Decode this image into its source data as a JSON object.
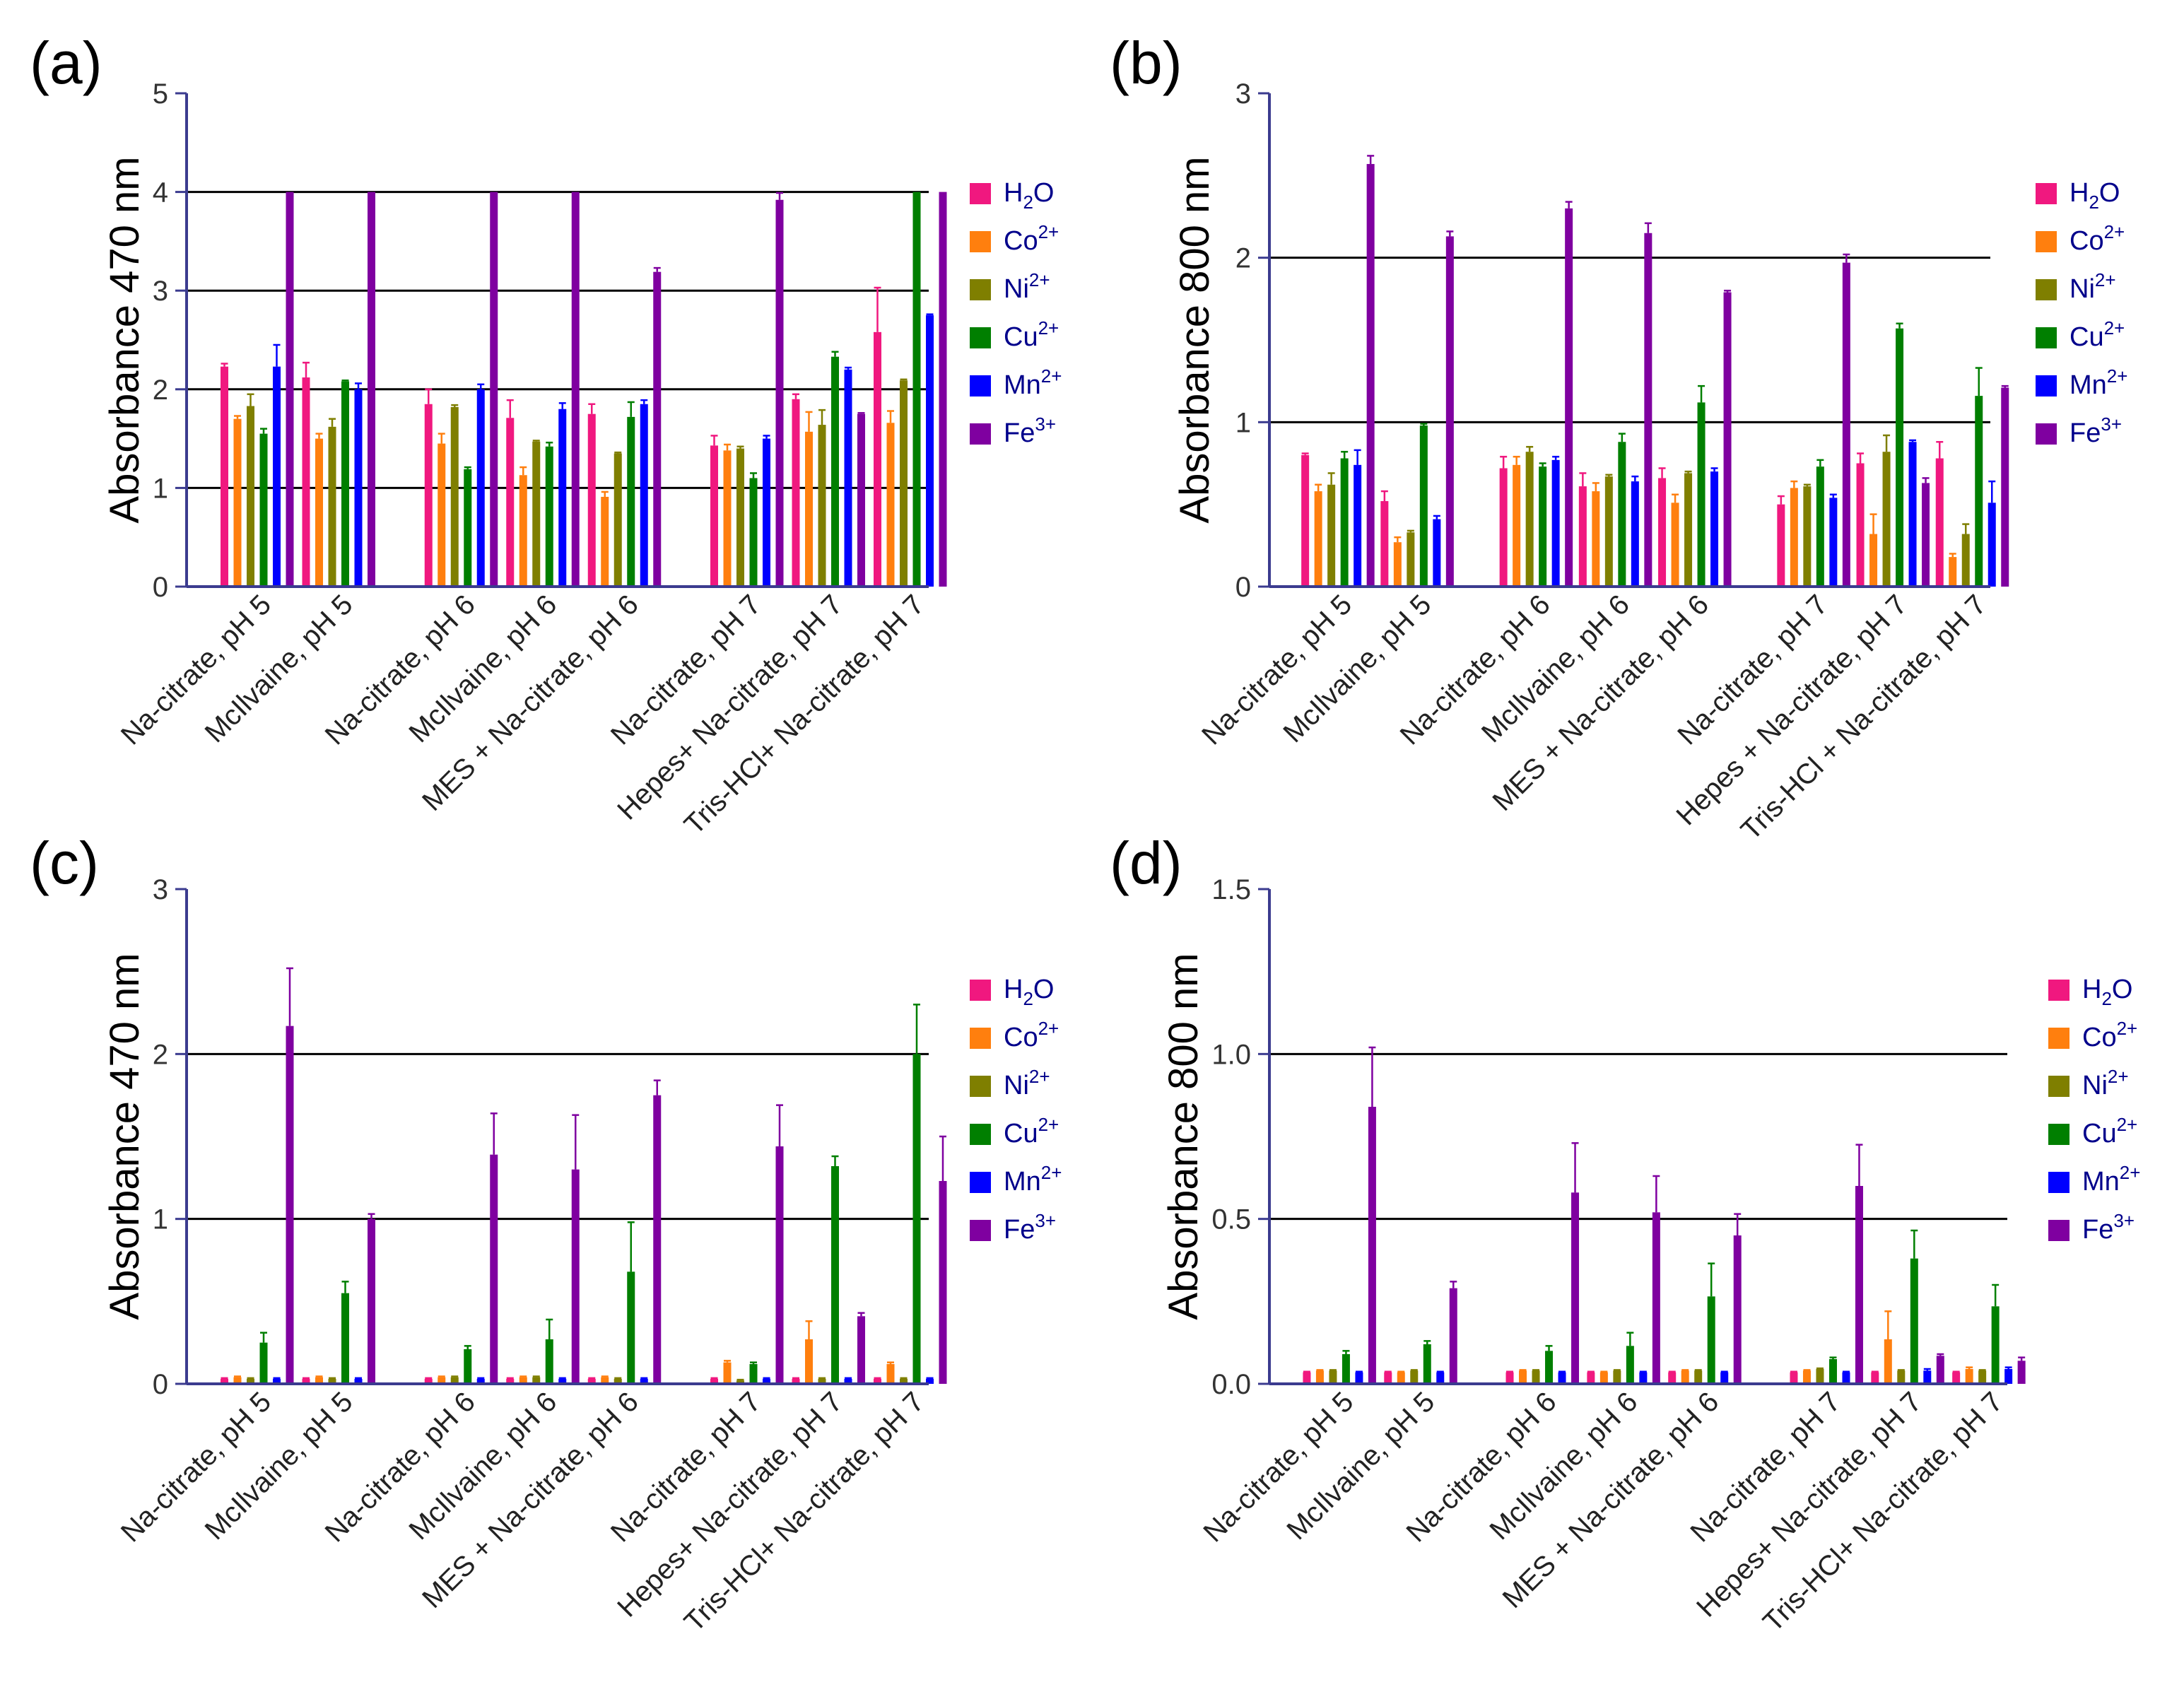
{
  "figure": {
    "series_colors": {
      "H2O": "#f0187f",
      "Co2+": "#ff7f0e",
      "Ni2+": "#7f7f00",
      "Cu2+": "#007f00",
      "Mn2+": "#0000ff",
      "Fe3+": "#7f00a0"
    },
    "axis_color": "#3b3b8f"
  },
  "chart_data": [
    {
      "panel": "(a)",
      "type": "bar",
      "ylabel": "Absorbance 470 nm",
      "ylim": [
        0,
        5
      ],
      "yticks": [
        "0",
        "1",
        "2",
        "3",
        "4",
        "5"
      ],
      "gridlines": [
        1,
        2,
        3,
        4
      ],
      "legend_position": "right",
      "legend": [
        {
          "base": "H",
          "sub": "2",
          "tail": "O",
          "sup": ""
        },
        {
          "base": "Co",
          "sub": "",
          "tail": "",
          "sup": "2+"
        },
        {
          "base": "Ni",
          "sub": "",
          "tail": "",
          "sup": "2+"
        },
        {
          "base": "Cu",
          "sub": "",
          "tail": "",
          "sup": "2+"
        },
        {
          "base": "Mn",
          "sub": "",
          "tail": "",
          "sup": "2+"
        },
        {
          "base": "Fe",
          "sub": "",
          "tail": "",
          "sup": "3+"
        }
      ],
      "categories": [
        "Na-citrate, pH 5",
        "McIlvaine, pH 5",
        "Na-citrate, pH 6",
        "McIlvaine, pH 6",
        "MES + Na-citrate, pH 6",
        "Na-citrate, pH 7",
        "Hepes+ Na-citrate, pH 7",
        "Tris-HCl+ Na-citrate, pH 7"
      ],
      "series": [
        {
          "name": "H2O",
          "values": [
            2.23,
            2.12,
            1.85,
            1.71,
            1.75,
            1.43,
            1.9,
            2.58
          ],
          "errors": [
            0.03,
            0.15,
            0.15,
            0.18,
            0.1,
            0.1,
            0.05,
            0.45
          ]
        },
        {
          "name": "Co2+",
          "values": [
            1.7,
            1.5,
            1.45,
            1.13,
            0.91,
            1.38,
            1.57,
            1.66
          ],
          "errors": [
            0.03,
            0.05,
            0.1,
            0.08,
            0.05,
            0.06,
            0.2,
            0.12
          ]
        },
        {
          "name": "Ni2+",
          "values": [
            1.83,
            1.62,
            1.82,
            1.47,
            1.35,
            1.4,
            1.64,
            2.09
          ],
          "errors": [
            0.12,
            0.08,
            0.02,
            0.01,
            0.01,
            0.02,
            0.15,
            0.01
          ]
        },
        {
          "name": "Cu2+",
          "values": [
            1.55,
            2.08,
            1.19,
            1.42,
            1.72,
            1.1,
            2.33,
            4.0
          ],
          "errors": [
            0.05,
            0.01,
            0.02,
            0.04,
            0.15,
            0.05,
            0.05,
            0.0
          ]
        },
        {
          "name": "Mn2+",
          "values": [
            2.23,
            2.0,
            2.0,
            1.8,
            1.85,
            1.5,
            2.2,
            2.75
          ],
          "errors": [
            0.22,
            0.06,
            0.05,
            0.06,
            0.04,
            0.03,
            0.02,
            0.01
          ]
        },
        {
          "name": "Fe3+",
          "values": [
            4.0,
            4.0,
            4.0,
            4.0,
            3.19,
            3.92,
            1.75,
            4.0
          ],
          "errors": [
            0.0,
            0.0,
            0.0,
            0.0,
            0.04,
            0.07,
            0.01,
            0.0
          ]
        }
      ]
    },
    {
      "panel": "(b)",
      "type": "bar",
      "ylabel": "Absorbance 800 nm",
      "ylim": [
        0,
        3
      ],
      "yticks": [
        "0",
        "1",
        "2",
        "3"
      ],
      "gridlines": [
        1,
        2
      ],
      "legend_position": "right",
      "legend": [
        {
          "base": "H",
          "sub": "2",
          "tail": "O",
          "sup": ""
        },
        {
          "base": "Co",
          "sub": "",
          "tail": "",
          "sup": "2+"
        },
        {
          "base": "Ni",
          "sub": "",
          "tail": "",
          "sup": "2+"
        },
        {
          "base": "Cu",
          "sub": "",
          "tail": "",
          "sup": "2+"
        },
        {
          "base": "Mn",
          "sub": "",
          "tail": "",
          "sup": "2+"
        },
        {
          "base": "Fe",
          "sub": "",
          "tail": "",
          "sup": "3+"
        }
      ],
      "categories": [
        "Na-citrate, pH 5",
        "McIlvaine, pH 5",
        "Na-citrate, pH 6",
        "McIlvaine, pH 6",
        "MES + Na-citrate, pH 6",
        "Na-citrate, pH 7",
        "Hepes + Na-citrate, pH 7",
        "Tris-HCl + Na-citrate, pH 7"
      ],
      "series": [
        {
          "name": "H2O",
          "values": [
            0.8,
            0.52,
            0.72,
            0.61,
            0.66,
            0.5,
            0.75,
            0.78
          ],
          "errors": [
            0.01,
            0.06,
            0.07,
            0.08,
            0.06,
            0.05,
            0.06,
            0.1
          ]
        },
        {
          "name": "Co2+",
          "values": [
            0.58,
            0.27,
            0.74,
            0.58,
            0.51,
            0.6,
            0.32,
            0.18
          ],
          "errors": [
            0.04,
            0.03,
            0.05,
            0.05,
            0.05,
            0.04,
            0.12,
            0.02
          ]
        },
        {
          "name": "Ni2+",
          "values": [
            0.62,
            0.33,
            0.82,
            0.67,
            0.69,
            0.61,
            0.82,
            0.32
          ],
          "errors": [
            0.07,
            0.01,
            0.03,
            0.01,
            0.01,
            0.01,
            0.1,
            0.06
          ]
        },
        {
          "name": "Cu2+",
          "values": [
            0.78,
            0.98,
            0.73,
            0.88,
            1.12,
            0.73,
            1.57,
            1.16
          ],
          "errors": [
            0.04,
            0.01,
            0.02,
            0.05,
            0.1,
            0.04,
            0.03,
            0.17
          ]
        },
        {
          "name": "Mn2+",
          "values": [
            0.74,
            0.41,
            0.77,
            0.64,
            0.7,
            0.54,
            0.88,
            0.51
          ],
          "errors": [
            0.09,
            0.02,
            0.02,
            0.03,
            0.02,
            0.02,
            0.01,
            0.13
          ]
        },
        {
          "name": "Fe3+",
          "values": [
            2.57,
            2.13,
            2.3,
            2.15,
            1.79,
            1.97,
            0.63,
            1.21
          ],
          "errors": [
            0.05,
            0.03,
            0.04,
            0.06,
            0.01,
            0.05,
            0.03,
            0.01
          ]
        }
      ]
    },
    {
      "panel": "(c)",
      "type": "bar",
      "ylabel": "Absorbance 470 nm",
      "ylim": [
        0,
        3
      ],
      "yticks": [
        "0",
        "1",
        "2",
        "3"
      ],
      "gridlines": [
        1,
        2
      ],
      "legend_position": "right",
      "legend": [
        {
          "base": "H",
          "sub": "2",
          "tail": "O",
          "sup": ""
        },
        {
          "base": "Co",
          "sub": "",
          "tail": "",
          "sup": "2+"
        },
        {
          "base": "Ni",
          "sub": "",
          "tail": "",
          "sup": "2+"
        },
        {
          "base": "Cu",
          "sub": "",
          "tail": "",
          "sup": "2+"
        },
        {
          "base": "Mn",
          "sub": "",
          "tail": "",
          "sup": "2+"
        },
        {
          "base": "Fe",
          "sub": "",
          "tail": "",
          "sup": "3+"
        }
      ],
      "categories": [
        "Na-citrate, pH 5",
        "McIlvaine, pH 5",
        "Na-citrate, pH 6",
        "McIlvaine, pH 6",
        "MES + Na-citrate, pH 6",
        "Na-citrate, pH 7",
        "Hepes+ Na-citrate, pH 7",
        "Tris-HCl+ Na-citrate, pH 7"
      ],
      "series": [
        {
          "name": "H2O",
          "values": [
            0.03,
            0.03,
            0.03,
            0.03,
            0.03,
            0.03,
            0.03,
            0.03
          ],
          "errors": [
            0.005,
            0.005,
            0.005,
            0.005,
            0.005,
            0.005,
            0.005,
            0.005
          ]
        },
        {
          "name": "Co2+",
          "values": [
            0.04,
            0.04,
            0.04,
            0.04,
            0.04,
            0.13,
            0.27,
            0.12
          ],
          "errors": [
            0.005,
            0.005,
            0.005,
            0.005,
            0.005,
            0.01,
            0.11,
            0.01
          ]
        },
        {
          "name": "Ni2+",
          "values": [
            0.03,
            0.03,
            0.04,
            0.04,
            0.03,
            0.02,
            0.03,
            0.03
          ],
          "errors": [
            0.005,
            0.005,
            0.005,
            0.005,
            0.005,
            0.005,
            0.005,
            0.005
          ]
        },
        {
          "name": "Cu2+",
          "values": [
            0.25,
            0.55,
            0.21,
            0.27,
            0.68,
            0.12,
            1.32,
            2.0
          ],
          "errors": [
            0.06,
            0.07,
            0.02,
            0.12,
            0.3,
            0.01,
            0.06,
            0.3
          ]
        },
        {
          "name": "Mn2+",
          "values": [
            0.03,
            0.03,
            0.03,
            0.03,
            0.03,
            0.03,
            0.03,
            0.03
          ],
          "errors": [
            0.005,
            0.005,
            0.005,
            0.005,
            0.005,
            0.005,
            0.005,
            0.005
          ]
        },
        {
          "name": "Fe3+",
          "values": [
            2.17,
            1.0,
            1.39,
            1.3,
            1.75,
            1.44,
            0.41,
            1.23
          ],
          "errors": [
            0.35,
            0.03,
            0.25,
            0.33,
            0.09,
            0.25,
            0.02,
            0.27
          ]
        }
      ]
    },
    {
      "panel": "(d)",
      "type": "bar",
      "ylabel": "Absorbance 800 nm",
      "ylim": [
        0,
        1.5
      ],
      "yticks": [
        "0.0",
        "0.5",
        "1.0",
        "1.5"
      ],
      "gridlines": [
        0.5,
        1.0
      ],
      "legend_position": "right",
      "legend": [
        {
          "base": "H",
          "sub": "2",
          "tail": "O",
          "sup": ""
        },
        {
          "base": "Co",
          "sub": "",
          "tail": "",
          "sup": "2+"
        },
        {
          "base": "Ni",
          "sub": "",
          "tail": "",
          "sup": "2+"
        },
        {
          "base": "Cu",
          "sub": "",
          "tail": "",
          "sup": "2+"
        },
        {
          "base": "Mn",
          "sub": "",
          "tail": "",
          "sup": "2+"
        },
        {
          "base": "Fe",
          "sub": "",
          "tail": "",
          "sup": "3+"
        }
      ],
      "categories": [
        "Na-citrate, pH 5",
        "McIlvaine, pH 5",
        "Na-citrate, pH 6",
        "McIlvaine, pH 6",
        "MES + Na-citrate, pH 6",
        "Na-citrate, pH 7",
        "Hepes+ Na-citrate, pH 7",
        "Tris-HCl+ Na-citrate, pH 7"
      ],
      "series": [
        {
          "name": "H2O",
          "values": [
            0.035,
            0.035,
            0.035,
            0.035,
            0.035,
            0.035,
            0.035,
            0.035
          ],
          "errors": [
            0.002,
            0.002,
            0.002,
            0.002,
            0.002,
            0.002,
            0.002,
            0.002
          ]
        },
        {
          "name": "Co2+",
          "values": [
            0.04,
            0.035,
            0.04,
            0.035,
            0.04,
            0.04,
            0.135,
            0.045
          ],
          "errors": [
            0.002,
            0.002,
            0.002,
            0.002,
            0.002,
            0.002,
            0.085,
            0.005
          ]
        },
        {
          "name": "Ni2+",
          "values": [
            0.04,
            0.04,
            0.04,
            0.04,
            0.04,
            0.045,
            0.04,
            0.04
          ],
          "errors": [
            0.002,
            0.002,
            0.002,
            0.002,
            0.002,
            0.002,
            0.002,
            0.002
          ]
        },
        {
          "name": "Cu2+",
          "values": [
            0.09,
            0.12,
            0.1,
            0.115,
            0.265,
            0.075,
            0.38,
            0.235
          ],
          "errors": [
            0.01,
            0.01,
            0.015,
            0.04,
            0.1,
            0.005,
            0.085,
            0.065
          ]
        },
        {
          "name": "Mn2+",
          "values": [
            0.035,
            0.035,
            0.035,
            0.035,
            0.035,
            0.035,
            0.04,
            0.045
          ],
          "errors": [
            0.002,
            0.002,
            0.002,
            0.002,
            0.002,
            0.002,
            0.005,
            0.005
          ]
        },
        {
          "name": "Fe3+",
          "values": [
            0.84,
            0.29,
            0.58,
            0.52,
            0.45,
            0.6,
            0.085,
            0.07
          ],
          "errors": [
            0.18,
            0.02,
            0.15,
            0.11,
            0.065,
            0.125,
            0.005,
            0.01
          ]
        }
      ]
    }
  ]
}
